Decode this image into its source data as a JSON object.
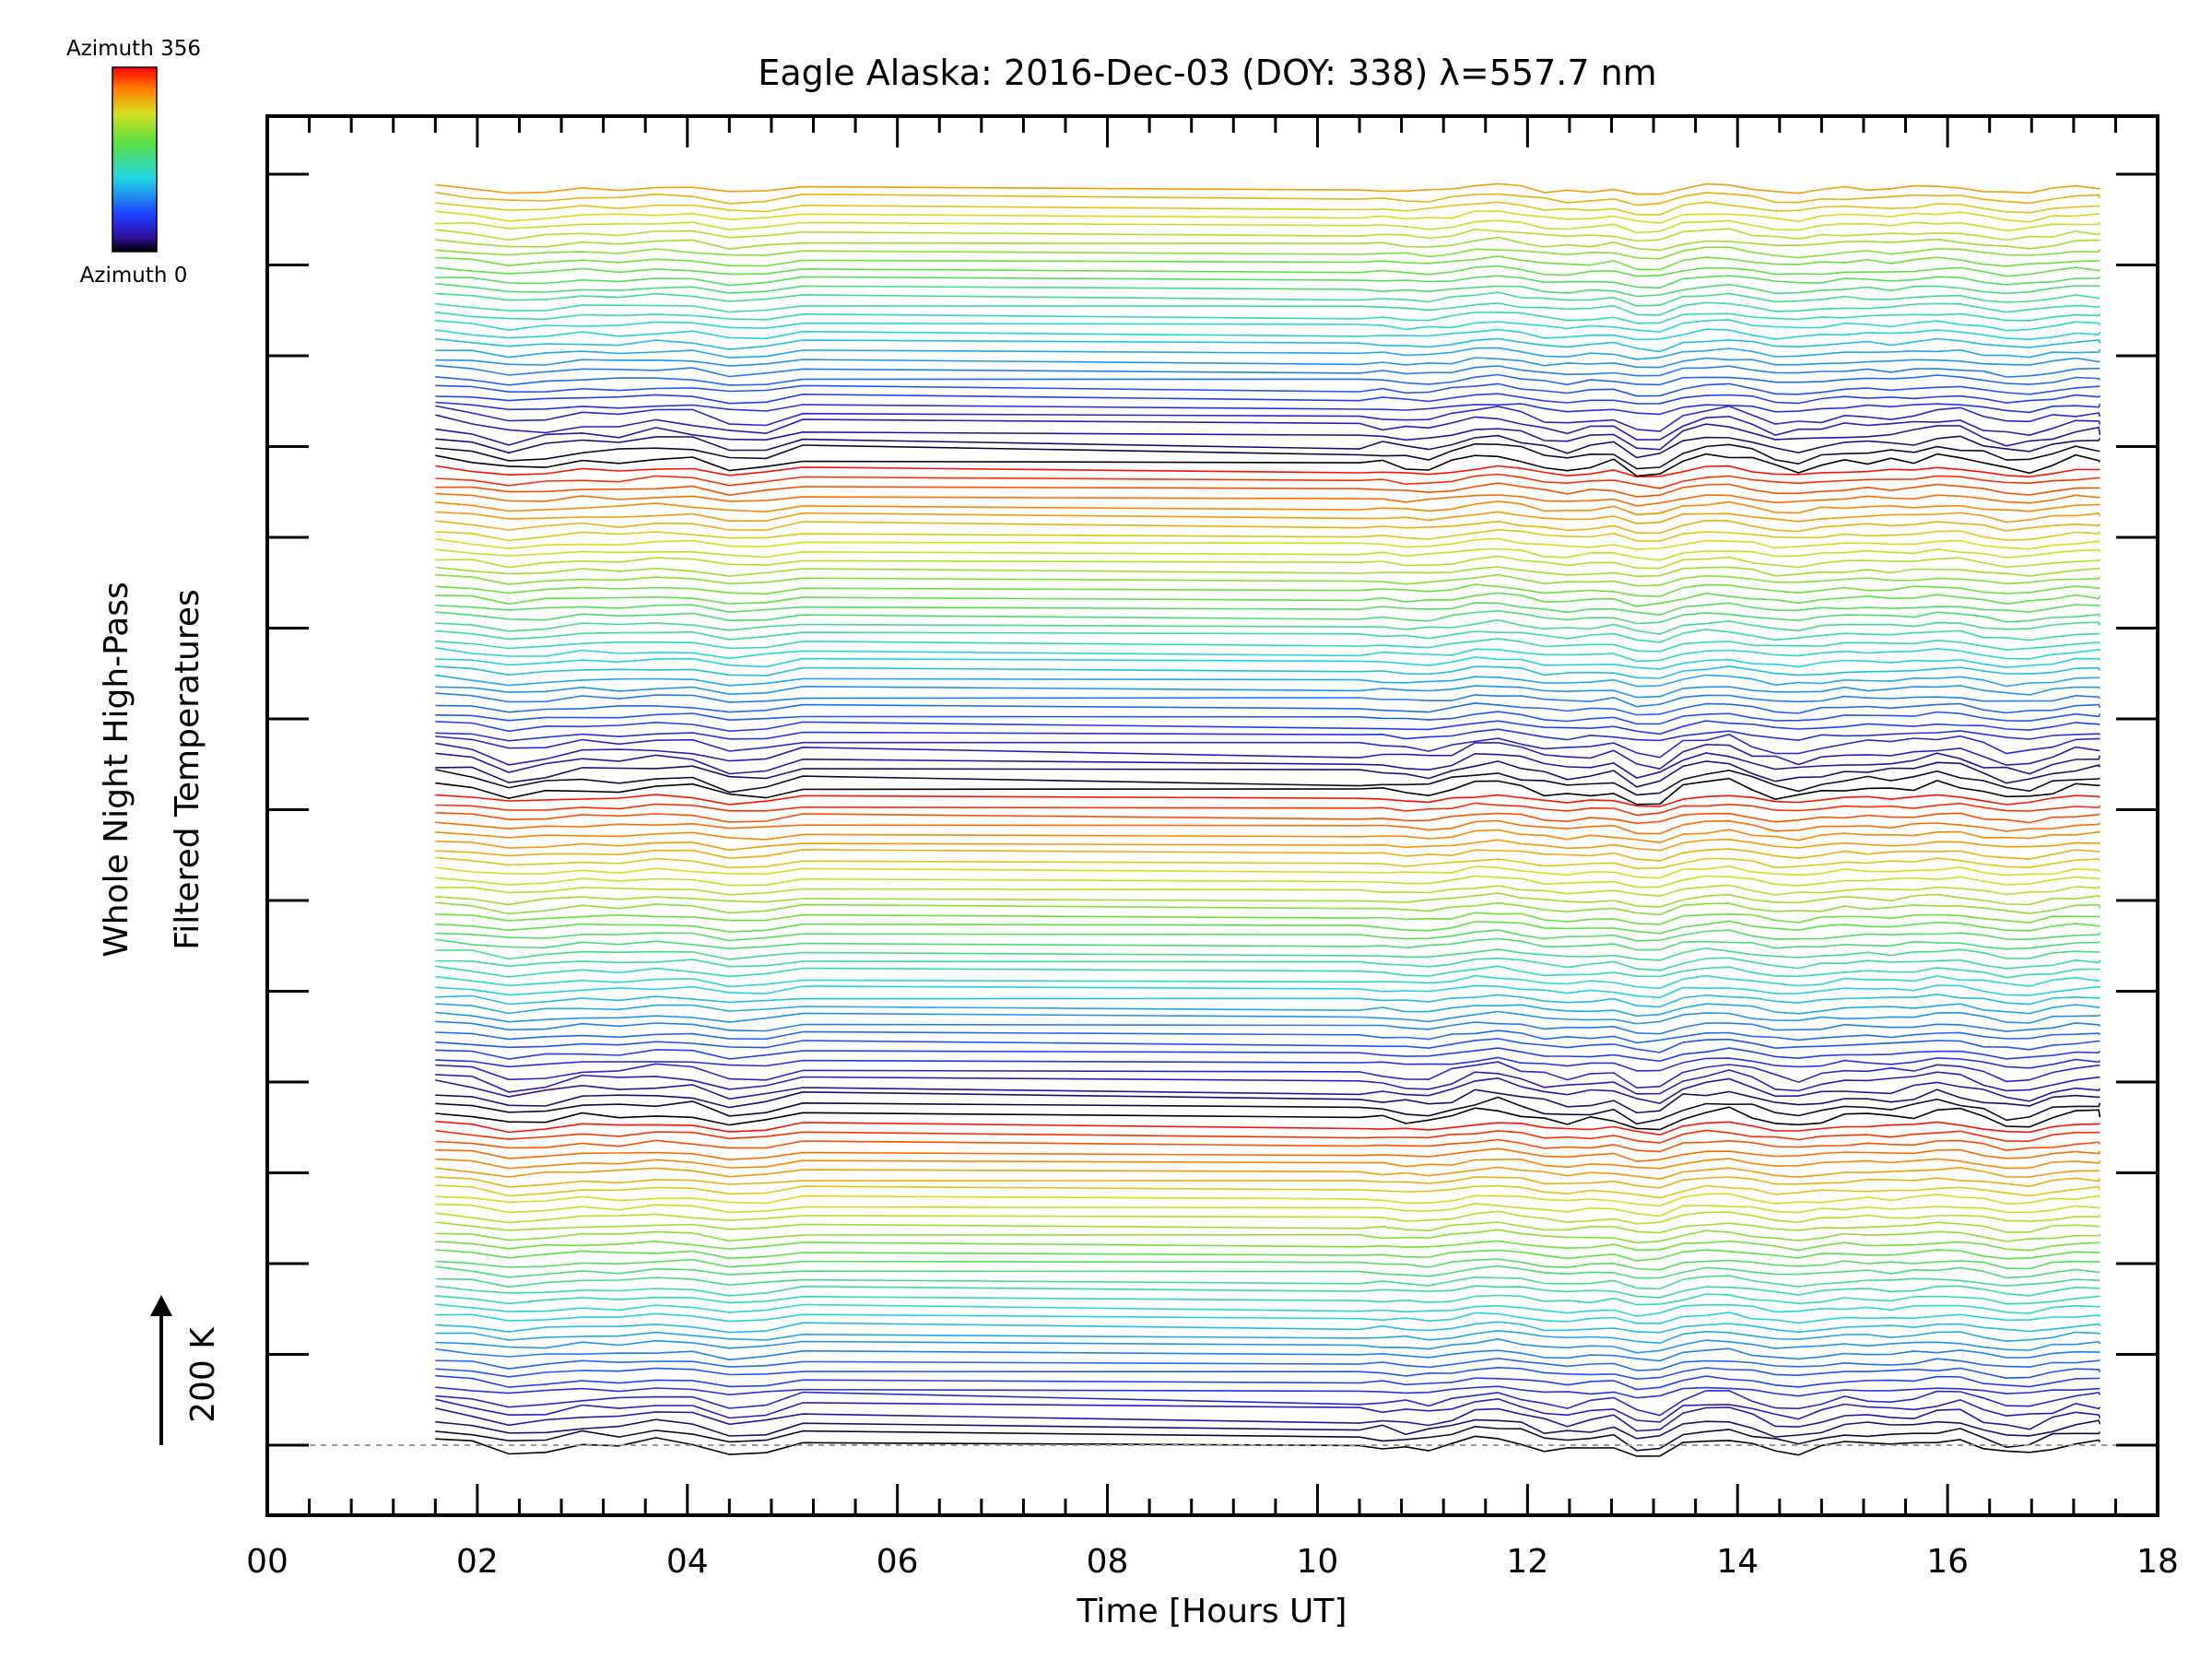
{
  "chart_data": {
    "type": "line",
    "title": "Eagle Alaska: 2016-Dec-03 (DOY: 338) λ=557.7 nm",
    "xlabel": "Time [Hours UT]",
    "ylabel_lines": [
      "Whole Night High-Pass",
      "Filtered Temperatures"
    ],
    "xlim": [
      0,
      18
    ],
    "x_tick_labels": [
      "00",
      "02",
      "04",
      "06",
      "08",
      "10",
      "12",
      "14",
      "16",
      "18"
    ],
    "x_range_of_data": [
      1.6,
      17.45
    ],
    "scale_bar": {
      "label": "200 K",
      "value_k": 200
    },
    "colorbar": {
      "top_label": "Azimuth 356",
      "bottom_label": "Azimuth 0",
      "min": 0,
      "max": 356,
      "colormap": "rainbow"
    },
    "series_count": 139,
    "azimuth_step_deg": 10,
    "azimuth_cycle": 36,
    "data_gap_hours": [
      5.3,
      10.4
    ],
    "grid": false,
    "colors": {
      "low_azimuth": "#000000",
      "mid_low_azimuth": "#3a2fd0",
      "mid_azimuth": "#30d0d0",
      "mid_high_azimuth": "#c8e020",
      "high_azimuth": "#ff3000"
    }
  }
}
